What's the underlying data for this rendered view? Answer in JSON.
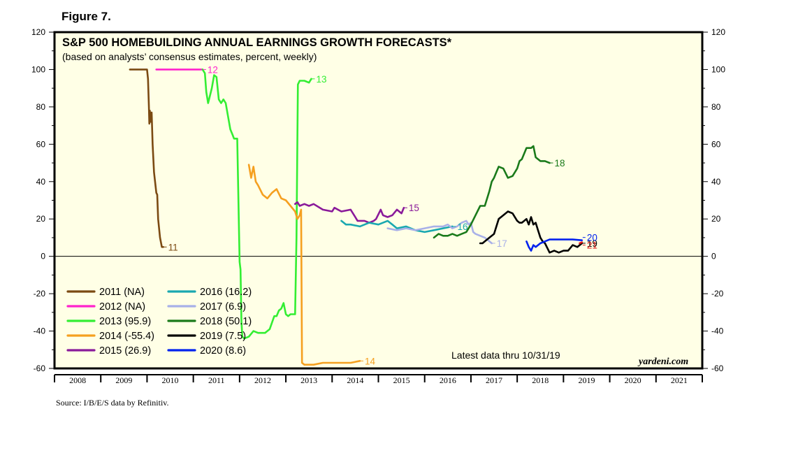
{
  "figure_label": "Figure 7.",
  "source": "Source: I/B/E/S data by Refinitiv.",
  "chart_data": {
    "type": "line",
    "title": "S&P 500 HOMEBUILDING ANNUAL EARNINGS GROWTH FORECASTS*",
    "subtitle": "(based on analysts’ consensus estimates, percent, weekly)",
    "note": "Latest data thru 10/31/19",
    "brand": "yardeni.com",
    "xlabel": "",
    "ylabel": "",
    "ylim": [
      -60,
      120
    ],
    "yticks": [
      -60,
      -40,
      -20,
      0,
      20,
      40,
      60,
      80,
      100,
      120
    ],
    "ytick_labels": [
      "-60",
      "-40",
      "-20",
      "0",
      "20",
      "40",
      "60",
      "80",
      "100",
      "120"
    ],
    "xlim": [
      2008,
      2022
    ],
    "x_tick_labels": [
      "2008",
      "2009",
      "2010",
      "2011",
      "2012",
      "2013",
      "2014",
      "2015",
      "2016",
      "2017",
      "2018",
      "2019",
      "2020",
      "2021"
    ],
    "grid": false,
    "legend_position": "bottom-left",
    "series": [
      {
        "name": "11",
        "legend": "2011 (NA)",
        "color": "#7b4a12",
        "x": [
          2009.63,
          2010.0,
          2010.02,
          2010.04,
          2010.05,
          2010.06,
          2010.08,
          2010.1,
          2010.12,
          2010.15,
          2010.2,
          2010.22,
          2010.24,
          2010.28,
          2010.32,
          2010.35
        ],
        "y": [
          100,
          100,
          95,
          80,
          71,
          78,
          72,
          77,
          60,
          45,
          34,
          33,
          20,
          10,
          5,
          5
        ]
      },
      {
        "name": "12",
        "legend": "2012 (NA)",
        "color": "#ff22cc",
        "x": [
          2010.2,
          2011.2
        ],
        "y": [
          100,
          100
        ]
      },
      {
        "name": "13",
        "legend": "2013 (95.9)",
        "color": "#33ee33",
        "x": [
          2011.2,
          2011.25,
          2011.28,
          2011.32,
          2011.35,
          2011.4,
          2011.45,
          2011.5,
          2011.55,
          2011.6,
          2011.65,
          2011.7,
          2011.75,
          2011.8,
          2011.85,
          2011.88,
          2011.95,
          2012.0,
          2012.02,
          2012.04,
          2012.06,
          2012.1,
          2012.2,
          2012.3,
          2012.4,
          2012.55,
          2012.65,
          2012.75,
          2012.8,
          2012.85,
          2012.9,
          2012.95,
          2013.0,
          2013.05,
          2013.1,
          2013.2,
          2013.23,
          2013.26,
          2013.3,
          2013.4,
          2013.5,
          2013.55
        ],
        "y": [
          100,
          98,
          88,
          82,
          85,
          90,
          97,
          96,
          84,
          82,
          84,
          82,
          75,
          68,
          65,
          63,
          63,
          -3,
          -7,
          -35,
          -43,
          -44,
          -43,
          -40,
          -41,
          -41,
          -39,
          -32,
          -32,
          -29,
          -28,
          -25,
          -31,
          -32,
          -31,
          -31,
          10,
          92,
          94,
          94,
          93,
          95
        ]
      },
      {
        "name": "14",
        "legend": "2014 (-55.4)",
        "color": "#f5a020",
        "x": [
          2012.2,
          2012.25,
          2012.3,
          2012.35,
          2012.4,
          2012.5,
          2012.6,
          2012.7,
          2012.8,
          2012.9,
          2013.0,
          2013.1,
          2013.2,
          2013.25,
          2013.3,
          2013.33,
          2013.35,
          2013.4,
          2013.5,
          2013.6,
          2013.8,
          2014.0,
          2014.2,
          2014.4,
          2014.6
        ],
        "y": [
          49,
          42,
          48,
          40,
          38,
          33,
          31,
          34,
          36,
          31,
          30,
          27,
          24,
          20,
          22,
          25,
          -57,
          -58,
          -58,
          -58,
          -57,
          -57,
          -57,
          -57,
          -56
        ]
      },
      {
        "name": "15",
        "legend": "2015 (26.9)",
        "color": "#8a1a9a",
        "x": [
          2013.2,
          2013.25,
          2013.3,
          2013.4,
          2013.5,
          2013.6,
          2013.8,
          2014.0,
          2014.05,
          2014.2,
          2014.4,
          2014.5,
          2014.55,
          2014.7,
          2014.8,
          2014.9,
          2014.95,
          2015.05,
          2015.1,
          2015.2,
          2015.3,
          2015.4,
          2015.5,
          2015.55
        ],
        "y": [
          28,
          29,
          27,
          28,
          27,
          28,
          25,
          24,
          26,
          24,
          25,
          21,
          19,
          19,
          18,
          19,
          20,
          25,
          22,
          21,
          22,
          25,
          23,
          26
        ]
      },
      {
        "name": "16",
        "legend": "2016 (16.2)",
        "color": "#1aa8b0",
        "x": [
          2014.2,
          2014.3,
          2014.4,
          2014.6,
          2014.8,
          2015.0,
          2015.2,
          2015.3,
          2015.4,
          2015.6,
          2015.8,
          2016.0,
          2016.2,
          2016.4,
          2016.6
        ],
        "y": [
          19,
          17,
          17,
          16,
          18,
          17,
          19,
          17,
          15,
          16,
          14,
          13,
          14,
          15,
          16
        ]
      },
      {
        "name": "17",
        "legend": "2017 (6.9)",
        "color": "#a8b0e8",
        "x": [
          2015.2,
          2015.4,
          2015.6,
          2015.8,
          2016.0,
          2016.2,
          2016.4,
          2016.5,
          2016.6,
          2016.7,
          2016.8,
          2016.9,
          2016.95,
          2017.0,
          2017.05,
          2017.1,
          2017.2,
          2017.3,
          2017.45
        ],
        "y": [
          15,
          14,
          15,
          14,
          15,
          16,
          16,
          17,
          15,
          16,
          18,
          19,
          17,
          18,
          13,
          12,
          11,
          10,
          7
        ]
      },
      {
        "name": "18",
        "legend": "2018 (50.1)",
        "color": "#1a7a1a",
        "x": [
          2016.2,
          2016.3,
          2016.4,
          2016.5,
          2016.6,
          2016.7,
          2016.8,
          2016.9,
          2017.0,
          2017.1,
          2017.2,
          2017.3,
          2017.4,
          2017.45,
          2017.5,
          2017.55,
          2017.6,
          2017.7,
          2017.8,
          2017.9,
          2018.0,
          2018.05,
          2018.1,
          2018.2,
          2018.3,
          2018.35,
          2018.4,
          2018.5,
          2018.6,
          2018.7
        ],
        "y": [
          10,
          12,
          11,
          11,
          12,
          11,
          12,
          13,
          17,
          22,
          27,
          27,
          35,
          40,
          42,
          45,
          48,
          47,
          42,
          43,
          47,
          51,
          52,
          58,
          58,
          59,
          53,
          51,
          51,
          50
        ]
      },
      {
        "name": "19",
        "legend": "2019 (7.5)",
        "color": "#000000",
        "x": [
          2017.2,
          2017.25,
          2017.3,
          2017.4,
          2017.5,
          2017.6,
          2017.7,
          2017.8,
          2017.9,
          2018.0,
          2018.05,
          2018.1,
          2018.2,
          2018.25,
          2018.3,
          2018.35,
          2018.4,
          2018.45,
          2018.5,
          2018.55,
          2018.6,
          2018.7,
          2018.8,
          2018.9,
          2019.0,
          2019.1,
          2019.2,
          2019.3,
          2019.4
        ],
        "y": [
          7,
          7,
          8,
          10,
          12,
          20,
          22,
          24,
          23,
          19,
          18,
          18,
          20,
          17,
          21,
          17,
          18,
          14,
          10,
          8,
          7,
          2,
          3,
          2,
          3,
          3,
          6,
          5,
          7
        ]
      },
      {
        "name": "20",
        "legend": "2020 (8.6)",
        "color": "#0022ee",
        "x": [
          2018.2,
          2018.25,
          2018.3,
          2018.35,
          2018.4,
          2018.5,
          2018.6,
          2018.7,
          2018.8,
          2019.0,
          2019.2,
          2019.4
        ],
        "y": [
          8,
          5,
          3,
          6,
          5,
          7,
          8,
          9,
          9,
          9,
          9,
          8.6
        ]
      },
      {
        "name": "21",
        "legend": "",
        "color": "#e01818",
        "x": [
          2019.35,
          2019.4
        ],
        "y": [
          7,
          7.5
        ]
      }
    ]
  }
}
